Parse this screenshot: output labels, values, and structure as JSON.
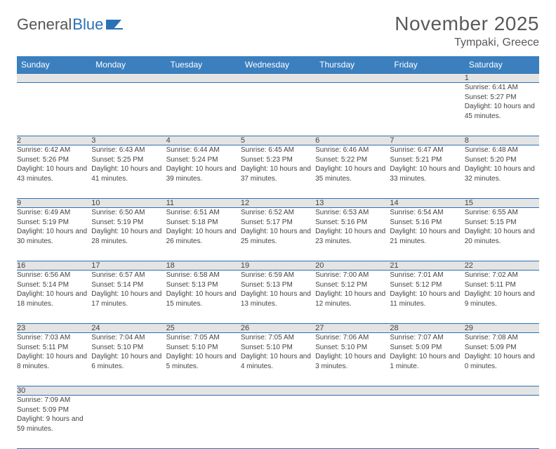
{
  "logo": {
    "text1": "General",
    "text2": "Blue",
    "icon_color": "#2a72b5"
  },
  "header": {
    "month": "November 2025",
    "location": "Tympaki, Greece"
  },
  "style": {
    "header_bg": "#3b7fbf",
    "header_fg": "#ffffff",
    "daynum_bg": "#e4e4e4",
    "border_color": "#2a72b5",
    "text_color": "#444444"
  },
  "days_of_week": [
    "Sunday",
    "Monday",
    "Tuesday",
    "Wednesday",
    "Thursday",
    "Friday",
    "Saturday"
  ],
  "weeks": [
    [
      null,
      null,
      null,
      null,
      null,
      null,
      {
        "n": "1",
        "sr": "6:41 AM",
        "ss": "5:27 PM",
        "dl": "10 hours and 45 minutes."
      }
    ],
    [
      {
        "n": "2",
        "sr": "6:42 AM",
        "ss": "5:26 PM",
        "dl": "10 hours and 43 minutes."
      },
      {
        "n": "3",
        "sr": "6:43 AM",
        "ss": "5:25 PM",
        "dl": "10 hours and 41 minutes."
      },
      {
        "n": "4",
        "sr": "6:44 AM",
        "ss": "5:24 PM",
        "dl": "10 hours and 39 minutes."
      },
      {
        "n": "5",
        "sr": "6:45 AM",
        "ss": "5:23 PM",
        "dl": "10 hours and 37 minutes."
      },
      {
        "n": "6",
        "sr": "6:46 AM",
        "ss": "5:22 PM",
        "dl": "10 hours and 35 minutes."
      },
      {
        "n": "7",
        "sr": "6:47 AM",
        "ss": "5:21 PM",
        "dl": "10 hours and 33 minutes."
      },
      {
        "n": "8",
        "sr": "6:48 AM",
        "ss": "5:20 PM",
        "dl": "10 hours and 32 minutes."
      }
    ],
    [
      {
        "n": "9",
        "sr": "6:49 AM",
        "ss": "5:19 PM",
        "dl": "10 hours and 30 minutes."
      },
      {
        "n": "10",
        "sr": "6:50 AM",
        "ss": "5:19 PM",
        "dl": "10 hours and 28 minutes."
      },
      {
        "n": "11",
        "sr": "6:51 AM",
        "ss": "5:18 PM",
        "dl": "10 hours and 26 minutes."
      },
      {
        "n": "12",
        "sr": "6:52 AM",
        "ss": "5:17 PM",
        "dl": "10 hours and 25 minutes."
      },
      {
        "n": "13",
        "sr": "6:53 AM",
        "ss": "5:16 PM",
        "dl": "10 hours and 23 minutes."
      },
      {
        "n": "14",
        "sr": "6:54 AM",
        "ss": "5:16 PM",
        "dl": "10 hours and 21 minutes."
      },
      {
        "n": "15",
        "sr": "6:55 AM",
        "ss": "5:15 PM",
        "dl": "10 hours and 20 minutes."
      }
    ],
    [
      {
        "n": "16",
        "sr": "6:56 AM",
        "ss": "5:14 PM",
        "dl": "10 hours and 18 minutes."
      },
      {
        "n": "17",
        "sr": "6:57 AM",
        "ss": "5:14 PM",
        "dl": "10 hours and 17 minutes."
      },
      {
        "n": "18",
        "sr": "6:58 AM",
        "ss": "5:13 PM",
        "dl": "10 hours and 15 minutes."
      },
      {
        "n": "19",
        "sr": "6:59 AM",
        "ss": "5:13 PM",
        "dl": "10 hours and 13 minutes."
      },
      {
        "n": "20",
        "sr": "7:00 AM",
        "ss": "5:12 PM",
        "dl": "10 hours and 12 minutes."
      },
      {
        "n": "21",
        "sr": "7:01 AM",
        "ss": "5:12 PM",
        "dl": "10 hours and 11 minutes."
      },
      {
        "n": "22",
        "sr": "7:02 AM",
        "ss": "5:11 PM",
        "dl": "10 hours and 9 minutes."
      }
    ],
    [
      {
        "n": "23",
        "sr": "7:03 AM",
        "ss": "5:11 PM",
        "dl": "10 hours and 8 minutes."
      },
      {
        "n": "24",
        "sr": "7:04 AM",
        "ss": "5:10 PM",
        "dl": "10 hours and 6 minutes."
      },
      {
        "n": "25",
        "sr": "7:05 AM",
        "ss": "5:10 PM",
        "dl": "10 hours and 5 minutes."
      },
      {
        "n": "26",
        "sr": "7:05 AM",
        "ss": "5:10 PM",
        "dl": "10 hours and 4 minutes."
      },
      {
        "n": "27",
        "sr": "7:06 AM",
        "ss": "5:10 PM",
        "dl": "10 hours and 3 minutes."
      },
      {
        "n": "28",
        "sr": "7:07 AM",
        "ss": "5:09 PM",
        "dl": "10 hours and 1 minute."
      },
      {
        "n": "29",
        "sr": "7:08 AM",
        "ss": "5:09 PM",
        "dl": "10 hours and 0 minutes."
      }
    ],
    [
      {
        "n": "30",
        "sr": "7:09 AM",
        "ss": "5:09 PM",
        "dl": "9 hours and 59 minutes."
      },
      null,
      null,
      null,
      null,
      null,
      null
    ]
  ],
  "labels": {
    "sunrise": "Sunrise: ",
    "sunset": "Sunset: ",
    "daylight": "Daylight: "
  }
}
